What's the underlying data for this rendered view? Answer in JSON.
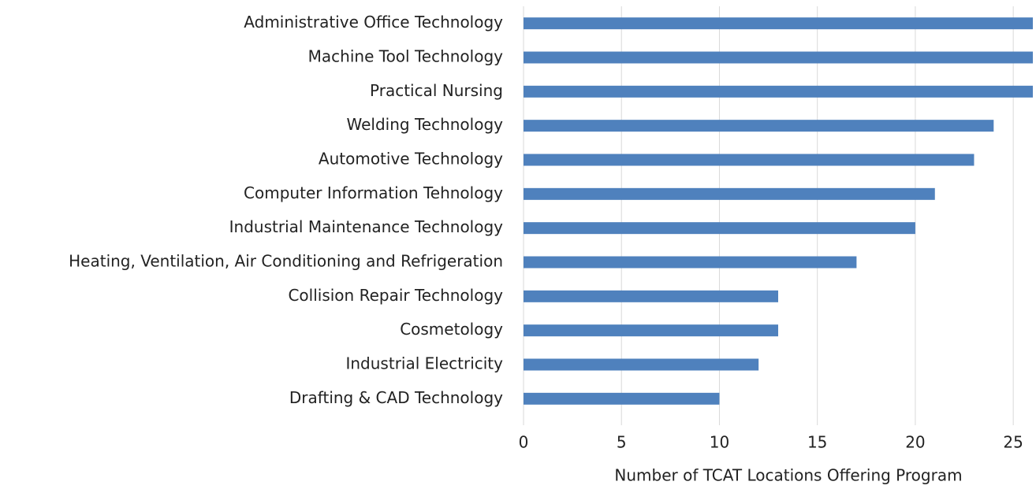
{
  "chart_data": {
    "type": "bar",
    "orientation": "horizontal",
    "categories": [
      "Administrative Office Technology",
      "Machine Tool Technology",
      "Practical Nursing",
      "Welding Technology",
      "Automotive Technology",
      "Computer Information Tehnology",
      "Industrial Maintenance Technology",
      "Heating, Ventilation, Air Conditioning and Refrigeration",
      "Collision Repair Technology",
      "Cosmetology",
      "Industrial Electricity",
      "Drafting & CAD Technology"
    ],
    "values": [
      26,
      26,
      26,
      24,
      23,
      21,
      20,
      17,
      13,
      13,
      12,
      10
    ],
    "color": "#4f81bd",
    "xlabel": "Number of TCAT Locations Offering Program",
    "xlim": [
      0,
      26
    ],
    "xticks": [
      0,
      5,
      10,
      15,
      20,
      25
    ],
    "grid": true
  }
}
